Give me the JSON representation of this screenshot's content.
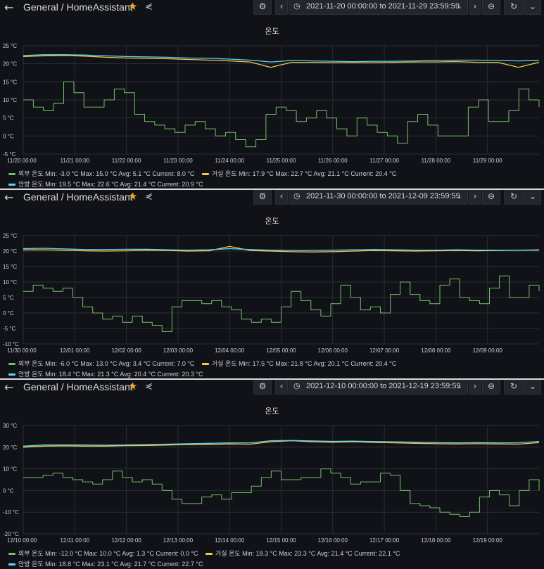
{
  "colors": {
    "outdoor": "#73bf69",
    "living": "#f2c84b",
    "bedroom": "#5ed6f0",
    "grid": "#2a2d33",
    "axis": "#ccccdc"
  },
  "nav": {
    "back_icon": "←",
    "breadcrumb": "General / HomeAssistant",
    "star_icon": "★",
    "share_icon": "⋞",
    "settings_icon": "⚙",
    "prev_icon": "‹",
    "clock_icon": "◷",
    "dropdown_icon": "⌄",
    "next_icon": "›",
    "zoom_icon": "⊖",
    "refresh_icon": "↻",
    "refresh_dropdown_icon": "⌄"
  },
  "panels": [
    {
      "time_range": "2021-11-20 00:00:00 to 2021-11-29 23:59:59",
      "chart_data": {
        "type": "line",
        "title": "온도",
        "unit": "°C",
        "ylim": [
          -5,
          25
        ],
        "yticks": [
          "25 °C",
          "20 °C",
          "15 °C",
          "10 °C",
          "5 °C",
          "0 °C",
          "-5 °C"
        ],
        "ytick_values": [
          25,
          20,
          15,
          10,
          5,
          0,
          -5
        ],
        "xticks": [
          "11/20 00:00",
          "11/21 00:00",
          "11/22 00:00",
          "11/23 00:00",
          "11/24 00:00",
          "11/25 00:00",
          "11/26 00:00",
          "11/27 00:00",
          "11/28 00:00",
          "11/29 00:00"
        ],
        "series": [
          {
            "name": "외부 온도",
            "key": "outdoor",
            "values": [
              10,
              8,
              7,
              9,
              15,
              12,
              8,
              8,
              10,
              13,
              12,
              6,
              4,
              3,
              2,
              1,
              3,
              4,
              2,
              0,
              1,
              -1,
              -3,
              -1,
              6,
              8,
              7,
              4,
              5,
              7,
              5,
              2,
              0,
              5,
              3,
              1,
              0,
              -2,
              4,
              6,
              3,
              0,
              0,
              0,
              8,
              10,
              4,
              4,
              7,
              13,
              10,
              8
            ]
          },
          {
            "name": "거실 온도",
            "key": "living",
            "values": [
              22,
              22.2,
              22.3,
              22.1,
              21.8,
              21.6,
              21.5,
              21.4,
              21.2,
              21,
              20.8,
              20.5,
              19,
              20.4,
              20.4,
              20.3,
              20.3,
              20.3,
              20.4,
              20.5,
              20.5,
              20.6,
              20.4,
              20.4,
              19,
              20.4
            ]
          },
          {
            "name": "안방 온도",
            "key": "bedroom",
            "values": [
              22.3,
              22.5,
              22.5,
              22.4,
              22.2,
              22.0,
              21.9,
              21.8,
              21.6,
              21.5,
              21.3,
              21.0,
              20.5,
              20.9,
              20.8,
              20.7,
              20.6,
              20.7,
              20.7,
              20.8,
              20.9,
              21.0,
              21.0,
              20.9,
              20.8,
              20.9
            ]
          }
        ],
        "legend": [
          {
            "key": "outdoor",
            "text": "외부 온도  Min: -3.0 °C  Max: 15.0 °C  Avg: 5.1 °C  Current: 8.0 °C"
          },
          {
            "key": "living",
            "text": "거실 온도  Min: 17.9 °C  Max: 22.7 °C  Avg: 21.1 °C  Current: 20.4 °C"
          },
          {
            "key": "bedroom",
            "text": "안방 온도  Min: 19.5 °C  Max: 22.6 °C  Avg: 21.4 °C  Current: 20.9 °C"
          }
        ]
      }
    },
    {
      "time_range": "2021-11-30 00:00:00 to 2021-12-09 23:59:59",
      "chart_data": {
        "type": "line",
        "title": "온도",
        "unit": "°C",
        "ylim": [
          -10,
          25
        ],
        "yticks": [
          "25 °C",
          "20 °C",
          "15 °C",
          "10 °C",
          "5 °C",
          "0 °C",
          "-5 °C",
          "-10 °C"
        ],
        "ytick_values": [
          25,
          20,
          15,
          10,
          5,
          0,
          -5,
          -10
        ],
        "xticks": [
          "11/30 00:00",
          "12/01 00:00",
          "12/02 00:00",
          "12/03 00:00",
          "12/04 00:00",
          "12/05 00:00",
          "12/06 00:00",
          "12/07 00:00",
          "12/08 00:00",
          "12/09 00:00"
        ],
        "series": [
          {
            "name": "외부 온도",
            "key": "outdoor",
            "values": [
              7,
              9,
              8,
              7,
              8,
              5,
              2,
              0,
              -2,
              -1,
              -3,
              -1,
              -3,
              -4,
              -6,
              2,
              4,
              4,
              3,
              4,
              2,
              1,
              -2,
              -3,
              -2,
              -3,
              2,
              7,
              4,
              1,
              -1,
              3,
              9,
              5,
              1,
              2,
              0,
              6,
              10,
              6,
              4,
              3,
              9,
              11,
              5,
              4,
              3,
              8,
              12,
              5,
              5,
              9,
              7
            ]
          },
          {
            "name": "거실 온도",
            "key": "living",
            "values": [
              20.4,
              20.4,
              20.3,
              20.1,
              20.0,
              20.1,
              20.3,
              20.2,
              20.0,
              20.1,
              21.5,
              20.2,
              20.0,
              19.8,
              19.7,
              19.8,
              20.0,
              20.2,
              20.1,
              20.0,
              20.1,
              20.2,
              20.1,
              20.2,
              20.3,
              20.4
            ]
          },
          {
            "name": "안방 온도",
            "key": "bedroom",
            "values": [
              20.8,
              20.9,
              20.7,
              20.5,
              20.5,
              20.6,
              20.6,
              20.4,
              20.3,
              20.4,
              20.8,
              20.5,
              20.3,
              20.2,
              20.2,
              20.3,
              20.4,
              20.5,
              20.4,
              20.3,
              20.3,
              20.4,
              20.3,
              20.3,
              20.3,
              20.3
            ]
          }
        ],
        "legend": [
          {
            "key": "outdoor",
            "text": "외부 온도  Min: -6.0 °C  Max: 13.0 °C  Avg: 3.4 °C  Current: 7.0 °C"
          },
          {
            "key": "living",
            "text": "거실 온도  Min: 17.5 °C  Max: 21.8 °C  Avg: 20.1 °C  Current: 20.4 °C"
          },
          {
            "key": "bedroom",
            "text": "안방 온도  Min: 18.4 °C  Max: 21.3 °C  Avg: 20.4 °C  Current: 20.3 °C"
          }
        ]
      }
    },
    {
      "time_range": "2021-12-10 00:00:00 to 2021-12-19 23:59:59",
      "chart_data": {
        "type": "line",
        "title": "온도",
        "unit": "°C",
        "ylim": [
          -20,
          30
        ],
        "yticks": [
          "30 °C",
          "20 °C",
          "10 °C",
          "0 °C",
          "-10 °C",
          "-20 °C"
        ],
        "ytick_values": [
          30,
          20,
          10,
          0,
          -10,
          -20
        ],
        "xticks": [
          "12/10 00:00",
          "12/11 00:00",
          "12/12 00:00",
          "12/13 00:00",
          "12/14 00:00",
          "12/15 00:00",
          "12/16 00:00",
          "12/17 00:00",
          "12/18 00:00",
          "12/19 00:00"
        ],
        "series": [
          {
            "name": "외부 온도",
            "key": "outdoor",
            "values": [
              6,
              6,
              7,
              8,
              6,
              5,
              4,
              3,
              5,
              9,
              6,
              4,
              5,
              3,
              0,
              -4,
              -6,
              -6,
              -3,
              -2,
              -4,
              -1,
              -1,
              2,
              6,
              9,
              5,
              5,
              6,
              6,
              10,
              8,
              6,
              3,
              4,
              4,
              8,
              7,
              0,
              -6,
              -7,
              -8,
              -10,
              -11,
              -12,
              -10,
              -3,
              0,
              -2,
              -7,
              0,
              5,
              0
            ]
          },
          {
            "name": "거실 온도",
            "key": "living",
            "values": [
              20,
              20.5,
              20.6,
              20.5,
              20.5,
              20.7,
              20.8,
              21.0,
              21.2,
              21.3,
              21.5,
              21.4,
              22.5,
              23.0,
              22.5,
              22.3,
              22.5,
              22.2,
              22.0,
              21.8,
              21.6,
              21.5,
              21.6,
              21.5,
              21.4,
              22.1
            ]
          },
          {
            "name": "안방 온도",
            "key": "bedroom",
            "values": [
              20.5,
              21.0,
              21.0,
              21.0,
              20.9,
              21.0,
              21.2,
              21.4,
              21.6,
              21.8,
              22.0,
              22.0,
              23.0,
              23.1,
              22.9,
              22.7,
              22.8,
              22.6,
              22.5,
              22.3,
              22.1,
              22.0,
              22.1,
              22.0,
              22.0,
              22.7
            ]
          }
        ],
        "legend": [
          {
            "key": "outdoor",
            "text": "외부 온도  Min: -12.0 °C  Max: 10.0 °C  Avg: 1.3 °C  Current: 0.0 °C"
          },
          {
            "key": "living",
            "text": "거실 온도  Min: 18.3 °C  Max: 23.3 °C  Avg: 21.4 °C  Current: 22.1 °C"
          },
          {
            "key": "bedroom",
            "text": "안방 온도  Min: 18.8 °C  Max: 23.1 °C  Avg: 21.7 °C  Current: 22.7 °C"
          }
        ]
      }
    }
  ]
}
